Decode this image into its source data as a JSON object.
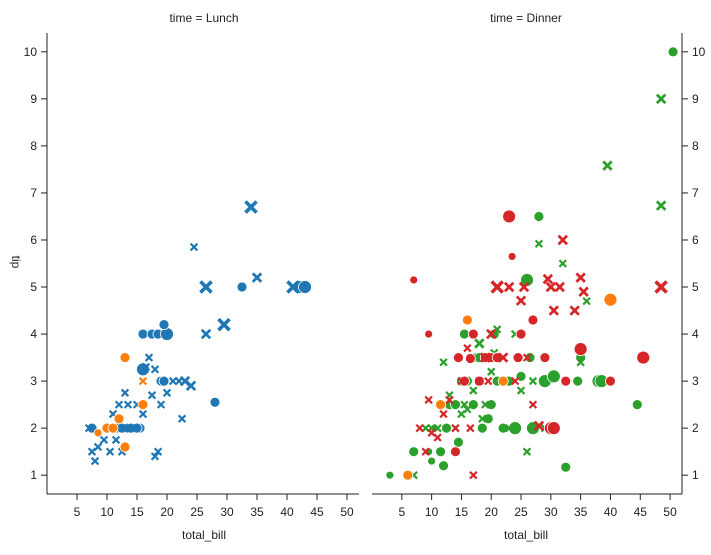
{
  "chart_data": [
    {
      "type": "scatter",
      "panel": "left",
      "title": "time = Lunch",
      "xlabel": "total_bill",
      "ylabel": "tip",
      "xlim": [
        0,
        52
      ],
      "ylim": [
        0.6,
        10.4
      ],
      "xticks": [
        5,
        10,
        15,
        20,
        25,
        30,
        35,
        40,
        45,
        50
      ],
      "yticks": [
        1,
        2,
        3,
        4,
        5,
        6,
        7,
        8,
        9,
        10
      ],
      "series": [
        {
          "name": "lunch-blue-circle",
          "color": "#1f77b4",
          "marker": "circle",
          "points": [
            [
              7.5,
              2.0,
              2
            ],
            [
              11.5,
              2.0,
              2
            ],
            [
              12.5,
              2.0,
              2
            ],
            [
              13.5,
              2.0,
              2
            ],
            [
              14.5,
              2.0,
              2
            ],
            [
              15.5,
              2.0,
              2
            ],
            [
              16.0,
              4.0,
              2
            ],
            [
              17.5,
              4.0,
              2
            ],
            [
              18.5,
              4.0,
              2
            ],
            [
              20.0,
              4.0,
              3
            ],
            [
              19.5,
              4.2,
              2
            ],
            [
              16.0,
              3.25,
              3
            ],
            [
              19.0,
              3.0,
              2
            ],
            [
              19.5,
              3.0,
              2
            ],
            [
              28.0,
              2.55,
              2
            ],
            [
              32.5,
              5.0,
              2
            ],
            [
              42.0,
              5.0,
              3
            ],
            [
              43.0,
              5.0,
              3
            ],
            [
              14.0,
              2.0,
              2
            ],
            [
              15.0,
              2.0,
              2
            ]
          ]
        },
        {
          "name": "lunch-blue-x",
          "color": "#1f77b4",
          "marker": "x",
          "points": [
            [
              7.0,
              2.0,
              1
            ],
            [
              7.5,
              1.5,
              1
            ],
            [
              8.0,
              1.3,
              1
            ],
            [
              8.5,
              1.6,
              1
            ],
            [
              9.5,
              1.75,
              1
            ],
            [
              10.0,
              2.0,
              1
            ],
            [
              10.5,
              1.5,
              1
            ],
            [
              11.0,
              2.3,
              1
            ],
            [
              11.5,
              1.75,
              1
            ],
            [
              12.0,
              2.5,
              1
            ],
            [
              12.5,
              2.0,
              1
            ],
            [
              12.5,
              1.5,
              1
            ],
            [
              13.0,
              2.0,
              1
            ],
            [
              13.0,
              2.75,
              1
            ],
            [
              13.5,
              2.5,
              1
            ],
            [
              14.0,
              2.0,
              1
            ],
            [
              15.0,
              2.5,
              1
            ],
            [
              16.0,
              2.3,
              1
            ],
            [
              16.5,
              3.3,
              1
            ],
            [
              17.0,
              3.5,
              1
            ],
            [
              17.5,
              2.7,
              1
            ],
            [
              18.0,
              3.25,
              1
            ],
            [
              18.0,
              1.4,
              1
            ],
            [
              18.5,
              1.5,
              1
            ],
            [
              19.0,
              2.5,
              1
            ],
            [
              20.0,
              2.75,
              1
            ],
            [
              21.0,
              3.0,
              1
            ],
            [
              22.0,
              3.0,
              1
            ],
            [
              22.5,
              2.2,
              1
            ],
            [
              23.0,
              3.0,
              2
            ],
            [
              24.0,
              2.9,
              2
            ],
            [
              24.5,
              5.85,
              1
            ],
            [
              26.5,
              4.0,
              2
            ],
            [
              26.5,
              5.0,
              3
            ],
            [
              29.5,
              4.2,
              3
            ],
            [
              34.0,
              6.7,
              3
            ],
            [
              35.0,
              5.2,
              2
            ],
            [
              41.0,
              5.0,
              3
            ]
          ]
        },
        {
          "name": "lunch-orange-circle",
          "color": "#ff7f0e",
          "marker": "circle",
          "points": [
            [
              8.5,
              1.9,
              1
            ],
            [
              10.0,
              2.0,
              2
            ],
            [
              11.0,
              2.0,
              2
            ],
            [
              12.0,
              2.2,
              2
            ],
            [
              13.0,
              3.5,
              2
            ],
            [
              13.0,
              1.6,
              2
            ],
            [
              16.0,
              2.5,
              2
            ]
          ]
        },
        {
          "name": "lunch-orange-x",
          "color": "#ff7f0e",
          "marker": "x",
          "points": [
            [
              16.0,
              3.0,
              1
            ]
          ]
        }
      ]
    },
    {
      "type": "scatter",
      "panel": "right",
      "title": "time = Dinner",
      "xlabel": "total_bill",
      "ylabel": "",
      "xlim": [
        0,
        52
      ],
      "ylim": [
        0.6,
        10.4
      ],
      "xticks": [
        5,
        10,
        15,
        20,
        25,
        30,
        35,
        40,
        45,
        50
      ],
      "yticks": [
        1,
        2,
        3,
        4,
        5,
        6,
        7,
        8,
        9,
        10
      ],
      "series": [
        {
          "name": "dinner-green-circle",
          "color": "#2ca02c",
          "marker": "circle",
          "points": [
            [
              3.0,
              1.0,
              1
            ],
            [
              7.0,
              1.5,
              2
            ],
            [
              9.5,
              1.5,
              1
            ],
            [
              10.0,
              1.3,
              1
            ],
            [
              10.5,
              2.0,
              1
            ],
            [
              11.5,
              1.5,
              2
            ],
            [
              12.0,
              1.2,
              2
            ],
            [
              12.5,
              2.0,
              2
            ],
            [
              13.0,
              2.5,
              2
            ],
            [
              14.0,
              2.5,
              2
            ],
            [
              14.5,
              1.7,
              2
            ],
            [
              15.0,
              3.0,
              2
            ],
            [
              15.5,
              4.0,
              2
            ],
            [
              16.0,
              3.0,
              2
            ],
            [
              17.0,
              2.5,
              2
            ],
            [
              17.5,
              3.5,
              2
            ],
            [
              18.0,
              3.5,
              2
            ],
            [
              18.5,
              2.0,
              2
            ],
            [
              19.5,
              2.2,
              2
            ],
            [
              20.0,
              2.5,
              2
            ],
            [
              20.5,
              4.0,
              2
            ],
            [
              21.0,
              3.0,
              2
            ],
            [
              22.0,
              2.0,
              2
            ],
            [
              23.0,
              3.0,
              2
            ],
            [
              24.0,
              2.0,
              3
            ],
            [
              25.0,
              3.1,
              2
            ],
            [
              26.0,
              5.15,
              3
            ],
            [
              26.5,
              3.5,
              2
            ],
            [
              27.0,
              2.0,
              3
            ],
            [
              28.0,
              6.5,
              2
            ],
            [
              29.0,
              3.0,
              3
            ],
            [
              30.5,
              3.1,
              3
            ],
            [
              32.5,
              1.17,
              2
            ],
            [
              34.5,
              3.0,
              2
            ],
            [
              35.0,
              3.5,
              2
            ],
            [
              38.0,
              3.0,
              3
            ],
            [
              38.5,
              3.0,
              3
            ],
            [
              44.5,
              2.5,
              2
            ],
            [
              50.5,
              10.0,
              2
            ],
            [
              40.0,
              3.0,
              2
            ]
          ]
        },
        {
          "name": "dinner-green-x",
          "color": "#2ca02c",
          "marker": "x",
          "points": [
            [
              7.0,
              1.0,
              1
            ],
            [
              9.0,
              2.0,
              1
            ],
            [
              10.0,
              2.0,
              1
            ],
            [
              11.0,
              2.0,
              1
            ],
            [
              12.0,
              3.4,
              1
            ],
            [
              13.0,
              2.7,
              1
            ],
            [
              14.0,
              2.0,
              1
            ],
            [
              15.0,
              2.3,
              1
            ],
            [
              15.5,
              2.5,
              1
            ],
            [
              16.0,
              2.4,
              1
            ],
            [
              17.0,
              2.8,
              1
            ],
            [
              17.5,
              3.5,
              1
            ],
            [
              18.0,
              3.8,
              2
            ],
            [
              18.5,
              2.2,
              1
            ],
            [
              19.0,
              2.5,
              1
            ],
            [
              20.0,
              3.2,
              1
            ],
            [
              20.5,
              3.6,
              1
            ],
            [
              21.0,
              4.1,
              1
            ],
            [
              22.0,
              3.0,
              1
            ],
            [
              23.0,
              2.0,
              1
            ],
            [
              24.0,
              4.0,
              1
            ],
            [
              25.0,
              2.8,
              1
            ],
            [
              26.0,
              1.5,
              1
            ],
            [
              27.0,
              3.0,
              1
            ],
            [
              28.0,
              5.92,
              1
            ],
            [
              29.0,
              2.0,
              1
            ],
            [
              32.0,
              5.5,
              1
            ],
            [
              35.0,
              3.4,
              1
            ],
            [
              36.0,
              4.7,
              1
            ],
            [
              39.5,
              7.58,
              2
            ],
            [
              48.5,
              9.0,
              2
            ],
            [
              48.5,
              6.73,
              2
            ]
          ]
        },
        {
          "name": "dinner-red-circle",
          "color": "#d62728",
          "marker": "circle",
          "points": [
            [
              7.0,
              5.15,
              1
            ],
            [
              9.5,
              4.0,
              1
            ],
            [
              14.0,
              1.5,
              2
            ],
            [
              14.5,
              3.5,
              2
            ],
            [
              15.5,
              3.0,
              2
            ],
            [
              16.5,
              3.48,
              2
            ],
            [
              17.0,
              4.0,
              2
            ],
            [
              18.0,
              3.0,
              2
            ],
            [
              19.0,
              3.5,
              2
            ],
            [
              20.0,
              3.5,
              2
            ],
            [
              21.0,
              3.5,
              2
            ],
            [
              23.0,
              6.5,
              3
            ],
            [
              23.5,
              5.65,
              1
            ],
            [
              24.5,
              3.5,
              2
            ],
            [
              25.0,
              4.0,
              2
            ],
            [
              27.0,
              4.3,
              2
            ],
            [
              29.0,
              3.5,
              2
            ],
            [
              30.0,
              2.0,
              3
            ],
            [
              30.5,
              2.0,
              3
            ],
            [
              32.5,
              3.0,
              2
            ],
            [
              35.0,
              3.68,
              3
            ],
            [
              40.0,
              3.0,
              2
            ],
            [
              45.5,
              3.5,
              3
            ]
          ]
        },
        {
          "name": "dinner-red-x",
          "color": "#d62728",
          "marker": "x",
          "points": [
            [
              8.0,
              2.0,
              1
            ],
            [
              9.0,
              1.5,
              1
            ],
            [
              9.5,
              2.6,
              1
            ],
            [
              10.0,
              1.9,
              1
            ],
            [
              11.0,
              1.8,
              1
            ],
            [
              12.0,
              2.3,
              1
            ],
            [
              13.0,
              2.6,
              1
            ],
            [
              14.0,
              2.0,
              1
            ],
            [
              15.0,
              3.0,
              1
            ],
            [
              16.0,
              3.7,
              1
            ],
            [
              16.5,
              2.0,
              1
            ],
            [
              17.0,
              1.0,
              1
            ],
            [
              18.0,
              3.0,
              1
            ],
            [
              19.0,
              3.5,
              2
            ],
            [
              19.5,
              3.0,
              1
            ],
            [
              20.0,
              4.0,
              2
            ],
            [
              21.0,
              5.0,
              3
            ],
            [
              22.0,
              3.5,
              2
            ],
            [
              23.0,
              5.0,
              2
            ],
            [
              24.0,
              3.0,
              1
            ],
            [
              25.0,
              4.71,
              2
            ],
            [
              25.5,
              5.0,
              2
            ],
            [
              26.0,
              3.5,
              1
            ],
            [
              27.0,
              2.5,
              1
            ],
            [
              28.0,
              2.05,
              2
            ],
            [
              29.5,
              5.17,
              2
            ],
            [
              30.0,
              5.0,
              2
            ],
            [
              30.5,
              4.5,
              2
            ],
            [
              31.5,
              5.0,
              2
            ],
            [
              32.0,
              6.0,
              2
            ],
            [
              34.0,
              4.5,
              2
            ],
            [
              35.0,
              5.2,
              2
            ],
            [
              35.5,
              4.9,
              2
            ],
            [
              48.5,
              5.0,
              3
            ]
          ]
        },
        {
          "name": "dinner-orange-circle",
          "color": "#ff7f0e",
          "marker": "circle",
          "points": [
            [
              6.0,
              1.0,
              2
            ],
            [
              11.5,
              2.5,
              2
            ],
            [
              16.0,
              4.3,
              2
            ],
            [
              22.0,
              3.0,
              2
            ],
            [
              40.0,
              4.73,
              3
            ]
          ]
        }
      ]
    }
  ]
}
